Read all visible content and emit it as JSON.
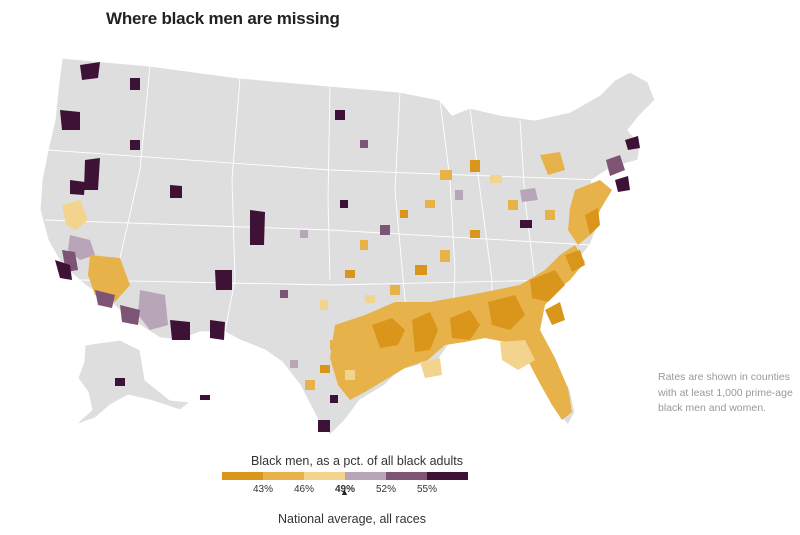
{
  "title": "Where black men are missing",
  "note": "Rates are shown in counties with at least 1,000 prime-age black men and women.",
  "legend": {
    "title": "Black men, as a pct. of all black adults",
    "colors": [
      "#d9961a",
      "#e8b24a",
      "#f3d48e",
      "#b9a5b8",
      "#7d5474",
      "#3d1236"
    ],
    "ticks": [
      "43%",
      "46%",
      "49%",
      "52%",
      "55%"
    ],
    "highlight_tick": "49%",
    "marker": "▲",
    "national_label": "National average, all races"
  },
  "map": {
    "background_color": "#dedede",
    "border_color": "#ffffff"
  }
}
